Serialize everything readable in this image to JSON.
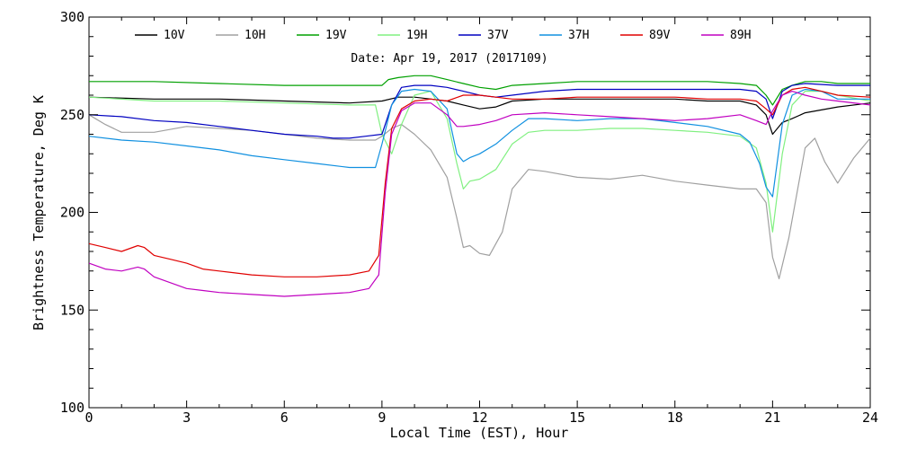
{
  "chart_data": {
    "type": "line",
    "subtitle": "Date: Apr 19, 2017 (2017109)",
    "xlabel": "Local Time (EST), Hour",
    "ylabel": "Brightness Temperature, Deg K",
    "xlim": [
      0,
      24
    ],
    "ylim": [
      100,
      300
    ],
    "xticks": [
      0,
      3,
      6,
      9,
      12,
      15,
      18,
      21,
      24
    ],
    "yticks": [
      100,
      150,
      200,
      250,
      300
    ],
    "grid": false,
    "legend_position": "top",
    "series": [
      {
        "name": "10V",
        "color": "#000000",
        "x": [
          0,
          2,
          4,
          6,
          8,
          9,
          9.5,
          10,
          10.5,
          11,
          11.5,
          12,
          12.5,
          13,
          14,
          15,
          16,
          17,
          18,
          19,
          20,
          20.5,
          20.8,
          21,
          21.3,
          21.6,
          22,
          23,
          24
        ],
        "y": [
          259,
          258,
          258,
          257,
          256,
          257,
          259,
          259,
          258,
          257,
          255,
          253,
          254,
          257,
          258,
          258,
          258,
          258,
          258,
          257,
          257,
          255,
          250,
          240,
          246,
          248,
          251,
          254,
          256
        ]
      },
      {
        "name": "10H",
        "color": "#a0a0a0",
        "x": [
          0,
          0.5,
          1,
          2,
          3,
          4,
          5,
          6,
          7,
          8,
          8.8,
          9,
          9.3,
          9.6,
          10,
          10.5,
          11,
          11.3,
          11.5,
          11.7,
          12,
          12.3,
          12.7,
          13,
          13.5,
          14,
          15,
          16,
          17,
          18,
          19,
          20,
          20.5,
          20.8,
          21,
          21.2,
          21.5,
          22,
          22.3,
          22.6,
          23,
          23.5,
          24
        ],
        "y": [
          250,
          245,
          241,
          241,
          244,
          243,
          242,
          240,
          238,
          237,
          237,
          239,
          243,
          245,
          240,
          232,
          218,
          197,
          182,
          183,
          179,
          178,
          190,
          212,
          222,
          221,
          218,
          217,
          219,
          216,
          214,
          212,
          212,
          205,
          177,
          166,
          187,
          233,
          238,
          226,
          215,
          228,
          238
        ]
      },
      {
        "name": "19V",
        "color": "#00a000",
        "x": [
          0,
          2,
          4,
          6,
          8,
          9,
          9.2,
          9.5,
          10,
          10.5,
          11,
          11.5,
          12,
          12.5,
          13,
          14,
          15,
          16,
          17,
          18,
          19,
          20,
          20.5,
          20.8,
          21,
          21.3,
          21.6,
          22,
          22.5,
          23,
          24
        ],
        "y": [
          267,
          267,
          266,
          265,
          265,
          265,
          268,
          269,
          270,
          270,
          268,
          266,
          264,
          263,
          265,
          266,
          267,
          267,
          267,
          267,
          267,
          266,
          265,
          260,
          255,
          263,
          265,
          267,
          267,
          266,
          266
        ]
      },
      {
        "name": "19H",
        "color": "#80f080",
        "x": [
          0,
          2,
          4,
          6,
          8,
          8.8,
          9,
          9.3,
          9.6,
          10,
          10.5,
          11,
          11.3,
          11.5,
          11.7,
          12,
          12.5,
          13,
          13.5,
          14,
          15,
          16,
          17,
          18,
          19,
          20,
          20.5,
          20.8,
          21,
          21.3,
          21.6,
          22,
          22.5,
          23,
          24
        ],
        "y": [
          259,
          257,
          257,
          256,
          255,
          255,
          240,
          230,
          245,
          260,
          262,
          248,
          225,
          212,
          216,
          217,
          222,
          235,
          241,
          242,
          242,
          243,
          243,
          242,
          241,
          239,
          233,
          215,
          190,
          230,
          255,
          262,
          262,
          260,
          257
        ]
      },
      {
        "name": "37V",
        "color": "#0000c0",
        "x": [
          0,
          1,
          2,
          3,
          4,
          5,
          6,
          7,
          7.5,
          8,
          8.5,
          9,
          9.3,
          9.6,
          10,
          10.5,
          11,
          11.5,
          12,
          12.5,
          13,
          14,
          15,
          16,
          17,
          18,
          19,
          20,
          20.5,
          20.8,
          21,
          21.3,
          21.6,
          22,
          23,
          24
        ],
        "y": [
          250,
          249,
          247,
          246,
          244,
          242,
          240,
          239,
          238,
          238,
          239,
          240,
          255,
          264,
          265,
          265,
          264,
          262,
          260,
          259,
          260,
          262,
          263,
          263,
          263,
          263,
          263,
          263,
          262,
          258,
          248,
          262,
          265,
          266,
          265,
          265
        ]
      },
      {
        "name": "37H",
        "color": "#1090e0",
        "x": [
          0,
          1,
          2,
          3,
          4,
          5,
          6,
          7,
          8,
          8.8,
          9,
          9.3,
          9.6,
          10,
          10.5,
          11,
          11.3,
          11.5,
          11.7,
          12,
          12.5,
          13,
          13.5,
          14,
          15,
          16,
          17,
          18,
          19,
          20,
          20.3,
          20.6,
          20.8,
          21,
          21.3,
          21.6,
          22,
          22.5,
          23,
          24
        ],
        "y": [
          239,
          237,
          236,
          234,
          232,
          229,
          227,
          225,
          223,
          223,
          235,
          255,
          262,
          263,
          262,
          253,
          230,
          226,
          228,
          230,
          235,
          242,
          248,
          248,
          247,
          248,
          248,
          246,
          244,
          240,
          236,
          225,
          213,
          208,
          245,
          260,
          263,
          262,
          258,
          258
        ]
      },
      {
        "name": "89V",
        "color": "#e00000",
        "x": [
          0,
          0.5,
          1,
          1.5,
          1.7,
          2,
          2.5,
          3,
          3.5,
          4,
          5,
          6,
          7,
          8,
          8.6,
          8.9,
          9.1,
          9.3,
          9.6,
          10,
          10.5,
          11,
          11.5,
          12,
          12.5,
          13,
          14,
          15,
          16,
          17,
          18,
          19,
          20,
          20.5,
          20.8,
          21,
          21.3,
          21.6,
          22,
          22.5,
          23,
          24
        ],
        "y": [
          184,
          182,
          180,
          183,
          182,
          178,
          176,
          174,
          171,
          170,
          168,
          167,
          167,
          168,
          170,
          178,
          215,
          243,
          253,
          257,
          258,
          257,
          260,
          260,
          259,
          258,
          258,
          259,
          259,
          259,
          259,
          258,
          258,
          257,
          253,
          250,
          260,
          263,
          264,
          262,
          260,
          259
        ]
      },
      {
        "name": "89H",
        "color": "#c000c0",
        "x": [
          0,
          0.5,
          1,
          1.5,
          1.7,
          2,
          2.5,
          3,
          3.5,
          4,
          5,
          6,
          7,
          8,
          8.6,
          8.9,
          9.1,
          9.3,
          9.6,
          10,
          10.5,
          11,
          11.3,
          11.5,
          12,
          12.5,
          13,
          14,
          15,
          16,
          17,
          18,
          19,
          20,
          20.5,
          20.8,
          21,
          21.3,
          21.6,
          22,
          22.5,
          23,
          24
        ],
        "y": [
          174,
          171,
          170,
          172,
          171,
          167,
          164,
          161,
          160,
          159,
          158,
          157,
          158,
          159,
          161,
          168,
          210,
          240,
          252,
          256,
          256,
          250,
          244,
          244,
          245,
          247,
          250,
          251,
          250,
          249,
          248,
          247,
          248,
          250,
          247,
          245,
          252,
          260,
          262,
          260,
          258,
          257,
          255
        ]
      }
    ]
  }
}
